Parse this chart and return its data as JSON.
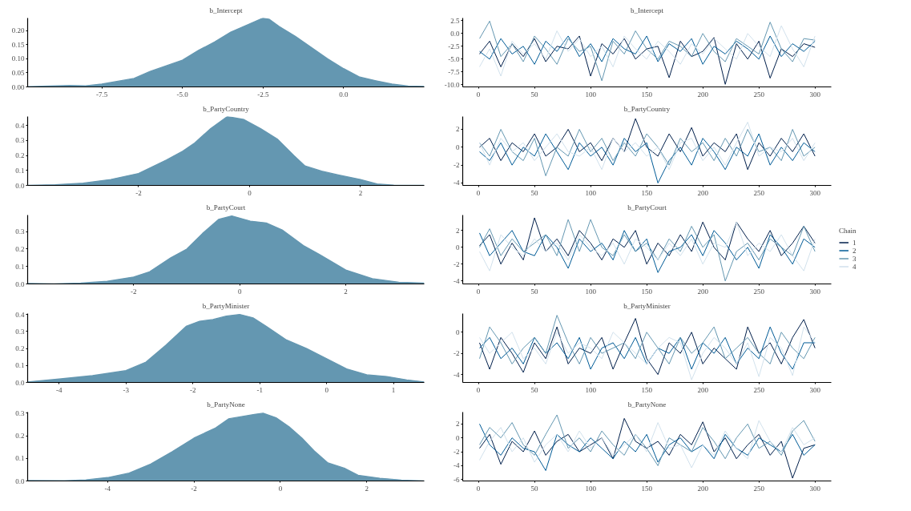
{
  "chart_data": [
    {
      "type": "area",
      "title": "b_Intercept",
      "x": [
        -9.8,
        -8.5,
        -8,
        -7.5,
        -7,
        -6.5,
        -6,
        -5.5,
        -5,
        -4.5,
        -4,
        -3.5,
        -3,
        -2.5,
        -2.3,
        -2,
        -1.5,
        -1,
        -0.5,
        0,
        0.5,
        1,
        1.5,
        2,
        2.5
      ],
      "series": [
        {
          "color": "#6497b1",
          "values": [
            0.001,
            0.005,
            0.004,
            0.01,
            0.02,
            0.03,
            0.055,
            0.075,
            0.095,
            0.13,
            0.16,
            0.195,
            0.22,
            0.245,
            0.24,
            0.215,
            0.18,
            0.14,
            0.1,
            0.065,
            0.035,
            0.022,
            0.01,
            0.003,
            0.002
          ]
        }
      ],
      "xlim": [
        -9.8,
        2.5
      ],
      "ylim": [
        0,
        0.245
      ],
      "xticks": [
        -7.5,
        {
          "value": -5,
          "label": "-5.0"
        },
        -2.5,
        {
          "value": 0,
          "label": "0.0"
        }
      ],
      "yticks": [
        {
          "value": 0,
          "label": "0.00"
        },
        0.05,
        {
          "value": 0.1,
          "label": "0.10"
        },
        0.15,
        {
          "value": 0.2,
          "label": "0.20"
        }
      ]
    },
    {
      "type": "line",
      "title": "b_Intercept",
      "x": [
        1,
        10,
        20,
        30,
        40,
        50,
        60,
        70,
        80,
        90,
        100,
        110,
        120,
        130,
        140,
        150,
        160,
        170,
        180,
        190,
        200,
        210,
        220,
        230,
        240,
        250,
        260,
        270,
        280,
        290,
        300
      ],
      "series": [
        {
          "color": "#011f4b",
          "values": [
            -4.0,
            -1.5,
            -6.5,
            -2.0,
            -4.5,
            -1.0,
            -5.5,
            -2.5,
            -3.0,
            -0.5,
            -8.3,
            -2.0,
            -4.0,
            -1.0,
            -5.0,
            -3.0,
            -2.5,
            -8.6,
            -1.5,
            -4.5,
            -3.5,
            -0.8,
            -9.9,
            -2.0,
            -5.0,
            -1.5,
            -8.7,
            -3.0,
            -4.5,
            -2.0,
            -2.7
          ]
        },
        {
          "color": "#005b96",
          "values": [
            -3.5,
            -5.0,
            -1.0,
            -4.0,
            -2.5,
            -6.0,
            -1.5,
            -3.5,
            -0.5,
            -4.5,
            -2.0,
            -5.5,
            -1.0,
            -3.0,
            -4.0,
            -0.5,
            -5.5,
            -2.0,
            -3.5,
            -1.0,
            -6.0,
            -2.5,
            -4.0,
            -1.5,
            -3.0,
            -5.0,
            -0.5,
            -4.5,
            -2.0,
            -3.5,
            -1.5
          ]
        },
        {
          "color": "#6497b1",
          "values": [
            -1.0,
            2.4,
            -4.5,
            -2.0,
            -5.5,
            -0.5,
            -3.0,
            -6.0,
            -1.0,
            -3.5,
            -2.5,
            -9.2,
            -1.5,
            -4.0,
            0.5,
            -3.0,
            -5.0,
            -1.5,
            -2.5,
            -4.5,
            0.0,
            -3.5,
            -5.5,
            -1.0,
            -2.5,
            -4.0,
            2.2,
            -3.0,
            -5.5,
            -1.0,
            -1.3
          ]
        },
        {
          "color": "#d1e1ec",
          "values": [
            -6.5,
            -3.0,
            -8.3,
            -1.5,
            -4.0,
            -2.0,
            -5.0,
            0.5,
            -3.5,
            -1.0,
            -4.5,
            -2.5,
            -6.5,
            -0.5,
            -3.0,
            -5.0,
            -1.5,
            -3.5,
            -6.0,
            -2.0,
            -4.0,
            -1.0,
            -3.0,
            -5.0,
            0.0,
            -2.5,
            -4.5,
            1.5,
            -3.0,
            -6.5,
            -0.5
          ]
        }
      ],
      "xlim": [
        -14,
        314.5
      ],
      "ylim": [
        -10.4,
        3.0
      ],
      "xticks": [
        0,
        50,
        100,
        150,
        200,
        250,
        300
      ],
      "yticks": [
        2.5,
        {
          "value": 0,
          "label": "0.0"
        },
        -2.5,
        {
          "value": -5,
          "label": "-5.0"
        },
        -7.5,
        {
          "value": -10,
          "label": "-10.0"
        }
      ]
    },
    {
      "type": "area",
      "title": "b_PartyCountry",
      "x": [
        -4,
        -3.5,
        -3,
        -2.5,
        -2,
        -1.5,
        -1.2,
        -1,
        -0.7,
        -0.4,
        -0.1,
        0.2,
        0.5,
        0.8,
        1,
        1.3,
        1.6,
        2,
        2.3,
        2.6,
        3.15
      ],
      "series": [
        {
          "color": "#6497b1",
          "values": [
            0,
            0.005,
            0.015,
            0.04,
            0.08,
            0.17,
            0.23,
            0.28,
            0.38,
            0.46,
            0.44,
            0.38,
            0.31,
            0.2,
            0.13,
            0.095,
            0.07,
            0.04,
            0.01,
            0.002,
            0
          ]
        }
      ],
      "xlim": [
        -4,
        3.15
      ],
      "ylim": [
        0,
        0.46
      ],
      "xticks": [
        -2,
        0,
        2
      ],
      "yticks": [
        {
          "value": 0,
          "label": "0.0"
        },
        0.1,
        0.2,
        0.3,
        0.4
      ]
    },
    {
      "type": "line",
      "title": "b_PartyCountry",
      "x": [
        1,
        10,
        20,
        30,
        40,
        50,
        60,
        70,
        80,
        90,
        100,
        110,
        120,
        130,
        140,
        150,
        160,
        170,
        180,
        190,
        200,
        210,
        220,
        230,
        240,
        250,
        260,
        270,
        280,
        290,
        300
      ],
      "series": [
        {
          "color": "#011f4b",
          "values": [
            0.0,
            1.0,
            -1.5,
            0.5,
            -0.5,
            1.5,
            -1.0,
            0.0,
            2.0,
            -0.5,
            0.5,
            -1.5,
            1.0,
            -0.5,
            3.2,
            0.0,
            -1.0,
            1.5,
            -0.5,
            2.2,
            -1.0,
            0.5,
            -0.5,
            1.5,
            -2.5,
            0.5,
            -1.0,
            1.0,
            -0.5,
            1.5,
            -1.0
          ]
        },
        {
          "color": "#005b96",
          "values": [
            -0.5,
            -1.5,
            0.5,
            -2.0,
            0.0,
            -1.0,
            1.5,
            -0.5,
            -2.5,
            0.5,
            -1.0,
            0.0,
            -2.0,
            1.0,
            -0.5,
            0.5,
            -4.0,
            -1.5,
            0.0,
            -2.0,
            1.0,
            -0.5,
            -2.5,
            0.0,
            -1.0,
            1.5,
            -2.0,
            0.0,
            -1.5,
            0.5,
            -0.5
          ]
        },
        {
          "color": "#6497b1",
          "values": [
            0.5,
            -1.0,
            2.0,
            -0.5,
            -1.5,
            1.0,
            -3.2,
            0.0,
            -1.0,
            2.0,
            -0.5,
            1.0,
            -1.5,
            0.5,
            -1.0,
            1.5,
            0.0,
            -2.0,
            1.0,
            -0.5,
            0.5,
            -1.5,
            1.0,
            -1.0,
            2.0,
            -0.5,
            0.0,
            -1.5,
            2.0,
            -1.0,
            0.0
          ]
        },
        {
          "color": "#d1e1ec",
          "values": [
            0.5,
            -2.0,
            1.0,
            -0.5,
            0.5,
            -1.5,
            0.0,
            1.5,
            -0.5,
            -1.0,
            0.0,
            -2.5,
            1.0,
            -0.5,
            0.5,
            -1.0,
            0.0,
            -2.5,
            0.5,
            1.0,
            -1.5,
            0.0,
            -2.0,
            0.5,
            2.8,
            -1.0,
            0.0,
            -0.5,
            1.0,
            -1.5,
            0.5
          ]
        }
      ],
      "xlim": [
        -14,
        314.5
      ],
      "ylim": [
        -4.27,
        3.43
      ],
      "xticks": [
        0,
        50,
        100,
        150,
        200,
        250,
        300
      ],
      "yticks": [
        2,
        0,
        -2,
        -4
      ]
    },
    {
      "type": "area",
      "title": "b_PartyCourt",
      "x": [
        -4,
        -3.5,
        -3,
        -2.5,
        -2,
        -1.7,
        -1.3,
        -1,
        -0.7,
        -0.4,
        -0.15,
        0.2,
        0.5,
        0.8,
        1.2,
        1.5,
        2,
        2.5,
        3,
        3.48
      ],
      "series": [
        {
          "color": "#6497b1",
          "values": [
            0.003,
            0.001,
            0.005,
            0.015,
            0.04,
            0.07,
            0.15,
            0.2,
            0.29,
            0.37,
            0.39,
            0.36,
            0.35,
            0.31,
            0.22,
            0.17,
            0.08,
            0.03,
            0.01,
            0.005
          ]
        }
      ],
      "xlim": [
        -4,
        3.48
      ],
      "ylim": [
        0,
        0.395
      ],
      "xticks": [
        -2,
        0,
        2
      ],
      "yticks": [
        {
          "value": 0,
          "label": "0.0"
        },
        0.1,
        0.2,
        0.3
      ]
    },
    {
      "type": "line",
      "title": "b_PartyCourt",
      "legend": "right",
      "legend_title": "Chain",
      "x": [
        1,
        10,
        20,
        30,
        40,
        50,
        60,
        70,
        80,
        90,
        100,
        110,
        120,
        130,
        140,
        150,
        160,
        170,
        180,
        190,
        200,
        210,
        220,
        230,
        240,
        250,
        260,
        270,
        280,
        290,
        300
      ],
      "series": [
        {
          "name": "1",
          "color": "#011f4b",
          "values": [
            0.2,
            1.5,
            -2.0,
            0.5,
            -1.5,
            3.5,
            -0.5,
            1.0,
            -1.0,
            2.0,
            0.5,
            -1.5,
            1.0,
            0.0,
            2.0,
            -2.0,
            0.5,
            -1.0,
            1.5,
            -0.5,
            3.0,
            0.0,
            -1.5,
            3.0,
            1.0,
            -0.5,
            2.0,
            -1.0,
            0.5,
            2.5,
            0.5
          ]
        },
        {
          "name": "2",
          "color": "#005b96",
          "values": [
            1.7,
            -1.0,
            0.5,
            2.0,
            -0.5,
            -1.0,
            1.5,
            0.0,
            -2.5,
            1.0,
            -0.5,
            0.5,
            -1.5,
            2.0,
            -0.5,
            1.0,
            -3.0,
            -0.5,
            0.0,
            1.5,
            -1.0,
            2.0,
            0.5,
            -1.5,
            0.0,
            -2.5,
            1.5,
            0.0,
            -2.0,
            1.0,
            0.0
          ]
        },
        {
          "name": "3",
          "color": "#6497b1",
          "values": [
            0.0,
            2.2,
            -1.0,
            1.0,
            -0.5,
            0.5,
            1.5,
            -1.0,
            3.3,
            -0.5,
            3.3,
            0.0,
            -1.0,
            1.5,
            -0.5,
            0.5,
            -1.5,
            1.0,
            -0.5,
            2.5,
            0.0,
            1.5,
            -4.0,
            -0.5,
            0.5,
            -1.5,
            1.0,
            0.0,
            -1.0,
            2.5,
            -0.5
          ]
        },
        {
          "name": "4",
          "color": "#d1e1ec",
          "values": [
            -0.5,
            -2.8,
            1.5,
            0.0,
            -1.0,
            1.0,
            -0.5,
            0.5,
            -1.5,
            1.5,
            0.0,
            -1.0,
            0.5,
            -2.0,
            1.0,
            0.0,
            -1.5,
            0.5,
            -1.0,
            1.0,
            -2.0,
            0.5,
            0.0,
            3.0,
            -1.0,
            0.5,
            -0.5,
            1.5,
            -1.0,
            -2.8,
            1.0
          ]
        }
      ],
      "xlim": [
        -14,
        314.5
      ],
      "ylim": [
        -4.35,
        3.83
      ],
      "xticks": [
        0,
        50,
        100,
        150,
        200,
        250,
        300
      ],
      "yticks": [
        2,
        0,
        -2,
        -4
      ]
    },
    {
      "type": "area",
      "title": "b_PartyMinister",
      "x": [
        -4.47,
        -4,
        -3.5,
        -3,
        -2.7,
        -2.4,
        -2.1,
        -1.9,
        -1.7,
        -1.5,
        -1.3,
        -1.1,
        -0.9,
        -0.6,
        -0.3,
        0,
        0.3,
        0.6,
        0.9,
        1.2,
        1.46
      ],
      "series": [
        {
          "color": "#6497b1",
          "values": [
            0.003,
            0.02,
            0.04,
            0.07,
            0.12,
            0.22,
            0.33,
            0.36,
            0.37,
            0.39,
            0.4,
            0.38,
            0.33,
            0.25,
            0.2,
            0.14,
            0.08,
            0.045,
            0.035,
            0.015,
            0.003
          ]
        }
      ],
      "xlim": [
        -4.47,
        1.46
      ],
      "ylim": [
        0,
        0.405
      ],
      "xticks": [
        -4,
        -3,
        -2,
        -1,
        0,
        1
      ],
      "yticks": [
        {
          "value": 0,
          "label": "0.0"
        },
        0.1,
        0.2,
        0.3,
        0.4
      ]
    },
    {
      "type": "line",
      "title": "b_PartyMinister",
      "x": [
        1,
        10,
        20,
        30,
        40,
        50,
        60,
        70,
        80,
        90,
        100,
        110,
        120,
        130,
        140,
        150,
        160,
        170,
        180,
        190,
        200,
        210,
        220,
        230,
        240,
        250,
        260,
        270,
        280,
        290,
        300
      ],
      "series": [
        {
          "color": "#011f4b",
          "values": [
            -1.0,
            -3.5,
            -0.5,
            -2.0,
            -3.8,
            -1.0,
            -2.5,
            0.5,
            -3.0,
            -1.5,
            -2.0,
            -0.5,
            -3.5,
            -1.0,
            1.3,
            -2.5,
            -4.0,
            -1.0,
            -2.0,
            0.0,
            -3.0,
            -1.5,
            -2.5,
            -3.5,
            0.5,
            -2.0,
            -1.0,
            -3.0,
            -0.5,
            1.2,
            -1.5
          ]
        },
        {
          "color": "#005b96",
          "values": [
            -1.5,
            -0.5,
            -2.5,
            -1.5,
            -3.0,
            -0.5,
            -2.0,
            -1.0,
            -2.5,
            -0.5,
            -3.5,
            -1.5,
            -1.0,
            -2.5,
            -0.5,
            -3.0,
            -1.5,
            -2.0,
            -0.5,
            -3.5,
            -1.0,
            -2.0,
            -0.5,
            -3.0,
            -1.5,
            -2.5,
            0.5,
            -2.0,
            -3.5,
            -1.0,
            -1.0
          ]
        },
        {
          "color": "#6497b1",
          "values": [
            -2.5,
            0.5,
            -1.0,
            -3.0,
            -1.5,
            -0.5,
            -2.0,
            1.6,
            -1.0,
            -3.0,
            -0.5,
            -2.0,
            -1.5,
            -1.0,
            -2.5,
            0.0,
            -1.5,
            -3.0,
            -0.5,
            -2.0,
            -1.0,
            0.5,
            -2.5,
            -1.5,
            -0.5,
            -2.0,
            -3.0,
            0.0,
            -1.5,
            -2.5,
            -0.5
          ]
        },
        {
          "color": "#d1e1ec",
          "values": [
            -0.5,
            -2.0,
            -1.0,
            0.0,
            -2.5,
            -1.5,
            -3.0,
            0.0,
            -2.0,
            -1.0,
            -1.5,
            -2.5,
            0.0,
            -1.0,
            -2.0,
            -3.0,
            -1.5,
            -0.5,
            -1.0,
            -4.5,
            -2.0,
            -0.5,
            -1.5,
            -3.0,
            -1.0,
            -4.2,
            -0.5,
            -1.5,
            -4.1,
            0.5,
            -1.0
          ]
        }
      ],
      "xlim": [
        -14,
        314.5
      ],
      "ylim": [
        -4.75,
        1.76
      ],
      "xticks": [
        0,
        50,
        100,
        150,
        200,
        250,
        300
      ],
      "yticks": [
        0,
        -2,
        -4
      ]
    },
    {
      "type": "area",
      "title": "b_PartyNone",
      "x": [
        -5.85,
        -5,
        -4.5,
        -4,
        -3.5,
        -3,
        -2.5,
        -2,
        -1.5,
        -1.2,
        -0.9,
        -0.6,
        -0.4,
        -0.1,
        0.2,
        0.5,
        0.8,
        1.1,
        1.5,
        1.8,
        2.3,
        2.8,
        3.33
      ],
      "series": [
        {
          "color": "#6497b1",
          "values": [
            0.002,
            0.001,
            0.005,
            0.015,
            0.035,
            0.075,
            0.13,
            0.19,
            0.235,
            0.275,
            0.285,
            0.295,
            0.3,
            0.28,
            0.24,
            0.19,
            0.13,
            0.08,
            0.055,
            0.025,
            0.012,
            0.004,
            0
          ]
        }
      ],
      "xlim": [
        -5.85,
        3.33
      ],
      "ylim": [
        0,
        0.305
      ],
      "xticks": [
        -4,
        -2,
        0,
        2
      ],
      "yticks": [
        {
          "value": 0,
          "label": "0.0"
        },
        0.1,
        0.2,
        0.3
      ]
    },
    {
      "type": "line",
      "title": "b_PartyNone",
      "x": [
        1,
        10,
        20,
        30,
        40,
        50,
        60,
        70,
        80,
        90,
        100,
        110,
        120,
        130,
        140,
        150,
        160,
        170,
        180,
        190,
        200,
        210,
        220,
        230,
        240,
        250,
        260,
        270,
        280,
        290,
        300
      ],
      "series": [
        {
          "color": "#011f4b",
          "values": [
            -1.5,
            0.5,
            -3.8,
            -0.5,
            -2.0,
            1.0,
            -2.5,
            -0.5,
            0.5,
            -2.0,
            -1.0,
            0.0,
            -3.0,
            2.8,
            -0.5,
            -1.5,
            -0.5,
            -2.5,
            0.5,
            -1.0,
            2.3,
            -2.0,
            0.0,
            -3.0,
            -1.0,
            0.5,
            -2.5,
            -0.5,
            -5.8,
            -1.5,
            -1.0
          ]
        },
        {
          "color": "#005b96",
          "values": [
            2.0,
            -1.0,
            -2.5,
            0.0,
            -1.5,
            -2.0,
            -4.7,
            0.5,
            -1.0,
            -2.0,
            0.0,
            -1.5,
            -3.0,
            -0.5,
            -2.0,
            0.5,
            -3.5,
            -1.0,
            0.0,
            -2.0,
            -1.0,
            -3.0,
            0.5,
            -1.5,
            -2.5,
            0.0,
            -1.0,
            -2.0,
            0.5,
            -2.5,
            -1.0
          ]
        },
        {
          "color": "#6497b1",
          "values": [
            -1.0,
            1.5,
            0.0,
            2.2,
            -1.0,
            -2.5,
            0.5,
            3.3,
            -1.5,
            0.0,
            -2.0,
            1.0,
            -1.0,
            -2.5,
            0.5,
            -1.5,
            -4.0,
            0.0,
            -1.0,
            -2.0,
            1.5,
            -0.5,
            -3.0,
            0.0,
            2.0,
            -1.5,
            -0.5,
            -2.5,
            1.0,
            2.5,
            -0.5
          ]
        },
        {
          "color": "#d1e1ec",
          "values": [
            -3.2,
            -0.5,
            1.5,
            -2.0,
            0.0,
            -3.5,
            -1.0,
            0.5,
            -2.0,
            1.0,
            -1.5,
            0.0,
            -2.5,
            -1.0,
            0.5,
            -2.0,
            2.2,
            -1.5,
            -1.0,
            -4.3,
            -1.0,
            -2.5,
            1.0,
            -1.5,
            -3.0,
            2.5,
            -0.5,
            -2.0,
            1.5,
            -1.0,
            0.0
          ]
        }
      ],
      "xlim": [
        -14,
        314.5
      ],
      "ylim": [
        -6.2,
        3.71
      ],
      "xticks": [
        0,
        50,
        100,
        150,
        200,
        250,
        300
      ],
      "yticks": [
        2,
        0,
        -2,
        -4,
        -6
      ]
    }
  ]
}
